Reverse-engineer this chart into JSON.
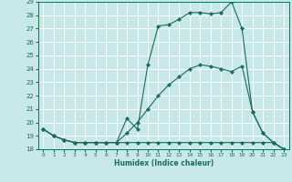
{
  "background_color": "#c8e8e8",
  "grid_color": "#ffffff",
  "line_color": "#1a6b5a",
  "xlabel": "Humidex (Indice chaleur)",
  "xlim": [
    -0.5,
    23.5
  ],
  "ylim": [
    18,
    29
  ],
  "yticks": [
    18,
    19,
    20,
    21,
    22,
    23,
    24,
    25,
    26,
    27,
    28,
    29
  ],
  "xticks": [
    0,
    1,
    2,
    3,
    4,
    5,
    6,
    7,
    8,
    9,
    10,
    11,
    12,
    13,
    14,
    15,
    16,
    17,
    18,
    19,
    20,
    21,
    22,
    23
  ],
  "series": [
    {
      "x": [
        0,
        1,
        2,
        3,
        4,
        5,
        6,
        7,
        8,
        9,
        10,
        11,
        12,
        13,
        14,
        15,
        16,
        17,
        18,
        19,
        20,
        21,
        22,
        23
      ],
      "y": [
        19.5,
        19.0,
        18.7,
        18.5,
        18.5,
        18.5,
        18.5,
        18.5,
        18.5,
        18.5,
        18.5,
        18.5,
        18.5,
        18.5,
        18.5,
        18.5,
        18.5,
        18.5,
        18.5,
        18.5,
        18.5,
        18.5,
        18.5,
        18.0
      ]
    },
    {
      "x": [
        0,
        1,
        2,
        3,
        4,
        5,
        6,
        7,
        8,
        9,
        10,
        11,
        12,
        13,
        14,
        15,
        16,
        17,
        18,
        19,
        20,
        21,
        22,
        23
      ],
      "y": [
        19.5,
        19.0,
        18.7,
        18.5,
        18.5,
        18.5,
        18.5,
        18.5,
        19.2,
        20.0,
        21.0,
        22.0,
        22.8,
        23.4,
        24.0,
        24.3,
        24.2,
        24.0,
        23.8,
        24.2,
        20.8,
        19.2,
        18.5,
        18.0
      ]
    },
    {
      "x": [
        0,
        1,
        2,
        3,
        4,
        5,
        6,
        7,
        8,
        9,
        10,
        11,
        12,
        13,
        14,
        15,
        16,
        17,
        18,
        19,
        20,
        21,
        22,
        23
      ],
      "y": [
        19.5,
        19.0,
        18.7,
        18.5,
        18.5,
        18.5,
        18.5,
        18.5,
        20.3,
        19.5,
        24.3,
        27.2,
        27.3,
        27.7,
        28.2,
        28.2,
        28.1,
        28.2,
        29.0,
        27.0,
        20.8,
        19.2,
        18.5,
        18.0
      ]
    }
  ]
}
